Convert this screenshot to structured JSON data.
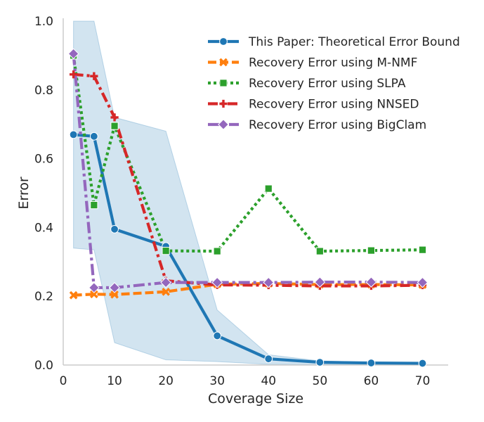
{
  "chart_data": {
    "type": "line",
    "title": "",
    "xlabel": "Coverage Size",
    "ylabel": "Error",
    "xlim": [
      0,
      75
    ],
    "ylim": [
      0,
      1.0
    ],
    "x_ticks": [
      0,
      10,
      20,
      30,
      40,
      50,
      60,
      70
    ],
    "y_ticks": [
      0.0,
      0.2,
      0.4,
      0.6,
      0.8,
      1.0
    ],
    "x_tick_labels": [
      "0",
      "10",
      "20",
      "30",
      "40",
      "50",
      "60",
      "70"
    ],
    "y_tick_labels": [
      "0.0",
      "0.2",
      "0.4",
      "0.6",
      "0.8",
      "1.0"
    ],
    "grid": false,
    "legend_position": "top-right",
    "x": [
      2,
      6,
      10,
      20,
      30,
      40,
      50,
      60,
      70
    ],
    "band": {
      "series": "This Paper: Theoretical Error Bound",
      "lower": [
        0.34,
        0.335,
        0.065,
        0.015,
        0.01,
        0.002,
        0.001,
        0.001,
        0.001
      ],
      "upper": [
        1.0,
        1.0,
        0.72,
        0.68,
        0.16,
        0.03,
        0.012,
        0.008,
        0.006
      ]
    },
    "series": [
      {
        "name": "This Paper: Theoretical Error Bound",
        "color": "#1f77b4",
        "marker": "circle",
        "dash": "solid",
        "values": [
          0.67,
          0.665,
          0.395,
          0.345,
          0.085,
          0.018,
          0.008,
          0.006,
          0.005
        ]
      },
      {
        "name": "Recovery Error using M-NMF",
        "color": "#ff7f0e",
        "marker": "x",
        "dash": "dashed",
        "values": [
          0.203,
          0.206,
          0.205,
          0.213,
          0.235,
          0.237,
          0.234,
          0.234,
          0.233
        ]
      },
      {
        "name": "Recovery Error using SLPA",
        "color": "#2ca02c",
        "marker": "square",
        "dash": "dotted",
        "values": [
          0.9,
          0.465,
          0.695,
          0.332,
          0.331,
          0.513,
          0.331,
          0.333,
          0.335
        ]
      },
      {
        "name": "Recovery Error using NNSED",
        "color": "#d62728",
        "marker": "plus",
        "dash": "dashdot",
        "values": [
          0.845,
          0.84,
          0.72,
          0.245,
          0.233,
          0.232,
          0.23,
          0.23,
          0.232
        ]
      },
      {
        "name": "Recovery Error using BigClam",
        "color": "#9467bd",
        "marker": "diamond",
        "dash": "dashdotlong",
        "values": [
          0.905,
          0.225,
          0.225,
          0.24,
          0.24,
          0.24,
          0.241,
          0.241,
          0.24
        ]
      }
    ]
  }
}
